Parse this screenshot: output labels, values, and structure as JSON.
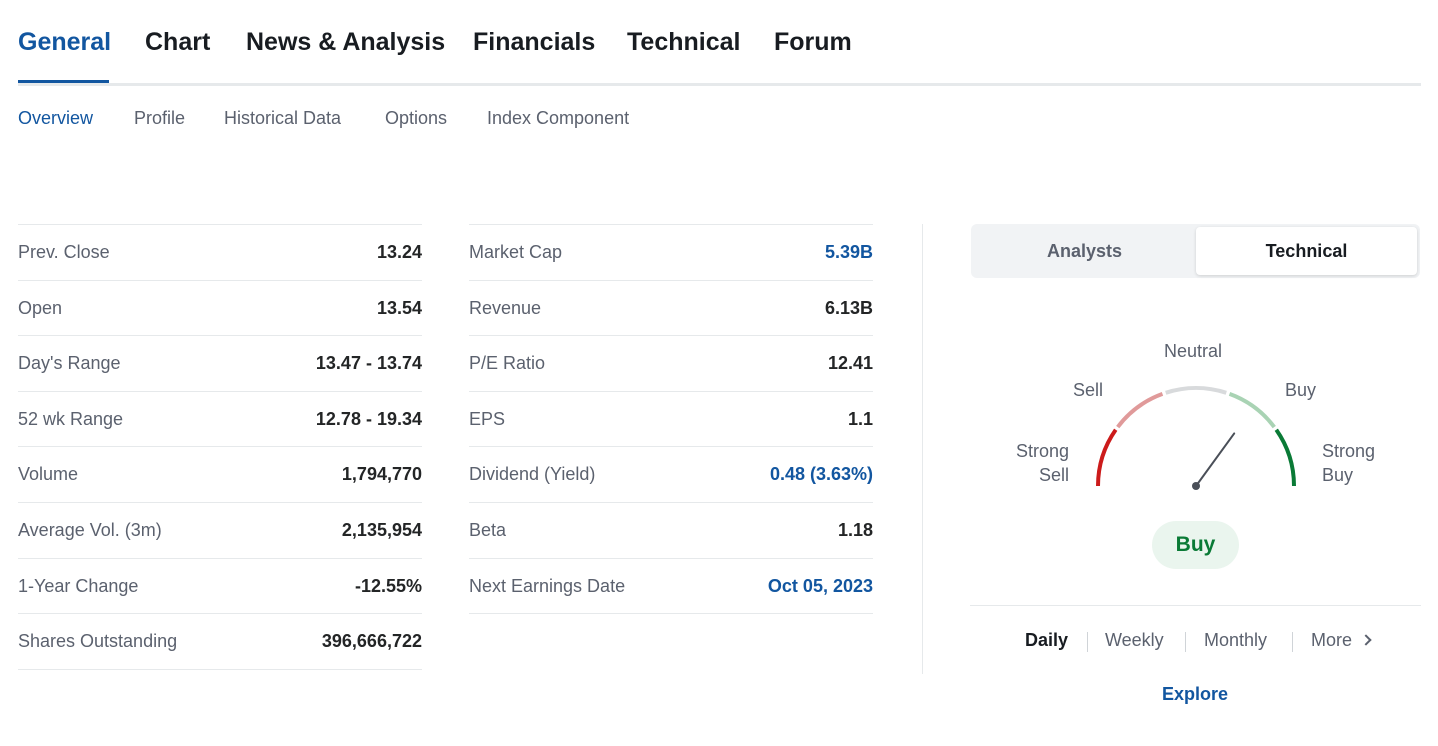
{
  "main_tabs": [
    {
      "label": "General",
      "active": true
    },
    {
      "label": "Chart"
    },
    {
      "label": "News & Analysis"
    },
    {
      "label": "Financials"
    },
    {
      "label": "Technical"
    },
    {
      "label": "Forum"
    }
  ],
  "sub_tabs": [
    {
      "label": "Overview",
      "active": true
    },
    {
      "label": "Profile"
    },
    {
      "label": "Historical Data"
    },
    {
      "label": "Options"
    },
    {
      "label": "Index Component"
    }
  ],
  "stats_left": [
    {
      "label": "Prev. Close",
      "value": "13.24"
    },
    {
      "label": "Open",
      "value": "13.54"
    },
    {
      "label": "Day's Range",
      "value": "13.47 - 13.74"
    },
    {
      "label": "52 wk Range",
      "value": "12.78 - 19.34"
    },
    {
      "label": "Volume",
      "value": "1,794,770"
    },
    {
      "label": "Average Vol. (3m)",
      "value": "2,135,954"
    },
    {
      "label": "1-Year Change",
      "value": "-12.55%"
    },
    {
      "label": "Shares Outstanding",
      "value": "396,666,722"
    }
  ],
  "stats_right": [
    {
      "label": "Market Cap",
      "value": "5.39B",
      "link": true
    },
    {
      "label": "Revenue",
      "value": "6.13B"
    },
    {
      "label": "P/E Ratio",
      "value": "12.41"
    },
    {
      "label": "EPS",
      "value": "1.1"
    },
    {
      "label": "Dividend (Yield)",
      "value": "0.48 (3.63%)",
      "link": true
    },
    {
      "label": "Beta",
      "value": "1.18"
    },
    {
      "label": "Next Earnings Date",
      "value": "Oct 05, 2023",
      "link": true
    }
  ],
  "sentiment": {
    "toggle": {
      "analysts": "Analysts",
      "technical": "Technical",
      "active": "technical"
    },
    "gauge": {
      "neutral": "Neutral",
      "sell": "Sell",
      "buy": "Buy",
      "strong_sell": [
        "Strong",
        "Sell"
      ],
      "strong_buy": [
        "Strong",
        "Buy"
      ],
      "needle_level": 0.7
    },
    "result": "Buy",
    "periods": [
      {
        "label": "Daily",
        "active": true
      },
      {
        "label": "Weekly"
      },
      {
        "label": "Monthly"
      },
      {
        "label": "More"
      }
    ],
    "explore_label": "Explore"
  },
  "colors": {
    "accent": "#1256a0",
    "strong_sell": "#cc1b1b",
    "sell": "#e09a9a",
    "neutral": "#d8dadc",
    "buy": "#a9d3b4",
    "strong_buy": "#0a7a36"
  }
}
